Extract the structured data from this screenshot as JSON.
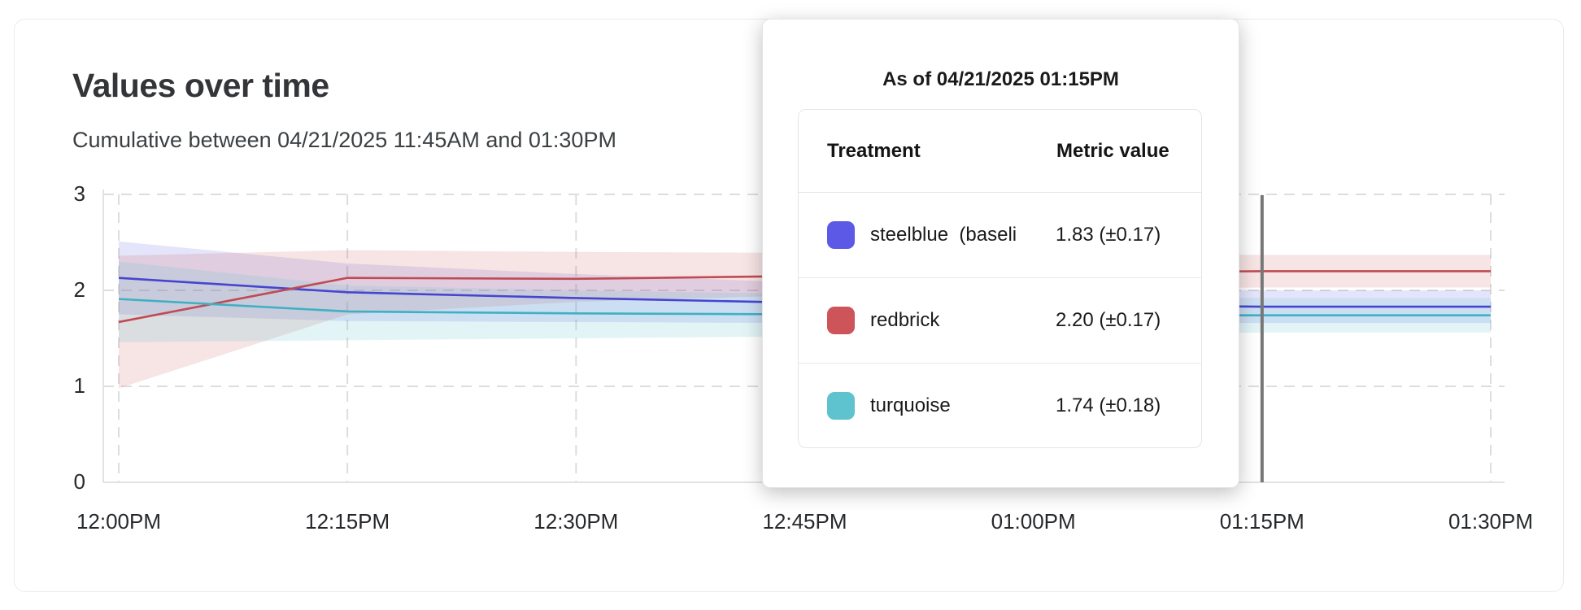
{
  "card": {
    "title": "Values over time",
    "subtitle": "Cumulative between 04/21/2025 11:45AM and 01:30PM"
  },
  "tooltip": {
    "title": "As of 04/21/2025 01:15PM",
    "table": {
      "headers": [
        "Treatment",
        "Metric value"
      ],
      "rows": [
        {
          "swatch_color": "#5B59E6",
          "label": "steelblue  (baseli",
          "value": "1.83 (±0.17)"
        },
        {
          "swatch_color": "#CD5459",
          "label": "redbrick",
          "value": "2.20 (±0.17)"
        },
        {
          "swatch_color": "#5EC3CF",
          "label": "turquoise",
          "value": "1.74 (±0.18)"
        }
      ]
    }
  },
  "chart_data": {
    "type": "line",
    "title": "Values over time",
    "subtitle": "Cumulative between 04/21/2025 11:45AM and 01:30PM",
    "x_tick_labels": [
      "12:00PM",
      "12:15PM",
      "12:30PM",
      "12:45PM",
      "01:00PM",
      "01:15PM",
      "01:30PM"
    ],
    "y_tick_labels": [
      "0",
      "1",
      "2",
      "3"
    ],
    "ylim": [
      0,
      3
    ],
    "grid": "dashed",
    "legend_position": "tooltip-only",
    "hover": {
      "x_label": "01:15PM",
      "x_index": 5,
      "line_color": "#777777"
    },
    "series": [
      {
        "name": "steelblue (baseline)",
        "color": "#4645CF",
        "band_color": "rgba(89,87,225,0.16)",
        "values": [
          2.13,
          1.98,
          1.92,
          1.87,
          1.85,
          1.83,
          1.83
        ],
        "band_upper": [
          2.51,
          2.28,
          2.17,
          2.08,
          2.03,
          2.0,
          2.0
        ],
        "band_lower": [
          1.75,
          1.68,
          1.67,
          1.66,
          1.66,
          1.66,
          1.66
        ],
        "value_at_hover": "1.83 (±0.17)"
      },
      {
        "name": "redbrick",
        "color": "#C04A52",
        "band_color": "rgba(205,84,89,0.16)",
        "values": [
          1.67,
          2.13,
          2.12,
          2.15,
          2.18,
          2.2,
          2.2
        ],
        "band_upper": [
          2.36,
          2.42,
          2.4,
          2.39,
          2.38,
          2.37,
          2.37
        ],
        "band_lower": [
          0.98,
          1.75,
          1.88,
          1.95,
          2.0,
          2.03,
          2.03
        ],
        "value_at_hover": "2.20 (±0.17)"
      },
      {
        "name": "turquoise",
        "color": "#3FB0C3",
        "band_color": "rgba(94,195,207,0.18)",
        "values": [
          1.91,
          1.78,
          1.76,
          1.75,
          1.74,
          1.74,
          1.74
        ],
        "band_upper": [
          2.3,
          2.05,
          2.0,
          1.96,
          1.94,
          1.92,
          1.92
        ],
        "band_lower": [
          1.46,
          1.48,
          1.5,
          1.52,
          1.54,
          1.56,
          1.56
        ],
        "value_at_hover": "1.74 (±0.18)"
      }
    ]
  }
}
